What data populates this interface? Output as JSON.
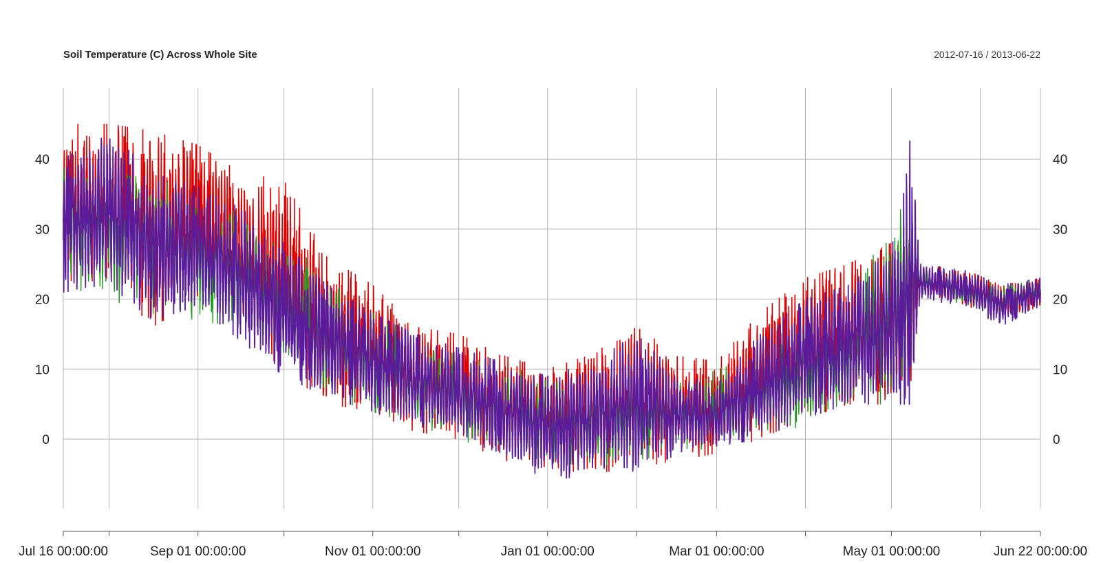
{
  "chart_data": {
    "type": "line",
    "title": "Soil Temperature (C) Across Whole Site",
    "date_range": "2012-07-16 / 2013-06-22",
    "x_start": "2012-07-16",
    "x_end": "2013-06-22",
    "ylim": [
      -10,
      50
    ],
    "y_ticks": [
      0,
      10,
      20,
      30,
      40
    ],
    "grid": true,
    "colors": {
      "grid": "#b3b3b3",
      "axis": "#555555",
      "red_series": "#e00000",
      "green_series": "#1f9a1f",
      "purple_series": "#5a1c9c"
    },
    "x_ticks": [
      {
        "date": "2012-07-16",
        "label": "Jul 16 00:00:00"
      },
      {
        "date": "2012-08-01"
      },
      {
        "date": "2012-09-01",
        "label": "Sep 01 00:00:00"
      },
      {
        "date": "2012-10-01"
      },
      {
        "date": "2012-11-01",
        "label": "Nov 01 00:00:00"
      },
      {
        "date": "2012-12-01"
      },
      {
        "date": "2013-01-01",
        "label": "Jan 01 00:00:00"
      },
      {
        "date": "2013-02-01"
      },
      {
        "date": "2013-03-01",
        "label": "Mar 01 00:00:00"
      },
      {
        "date": "2013-04-01"
      },
      {
        "date": "2013-05-01",
        "label": "May 01 00:00:00"
      },
      {
        "date": "2013-06-01"
      },
      {
        "date": "2013-06-22",
        "label": "Jun 22 00:00:00"
      }
    ],
    "series_bands": [
      {
        "color": "red",
        "points": [
          {
            "x": "2012-07-16",
            "min": 22,
            "max": 45
          },
          {
            "x": "2012-08-01",
            "min": 23,
            "max": 45
          },
          {
            "x": "2012-08-16",
            "min": 16,
            "max": 44
          },
          {
            "x": "2012-09-01",
            "min": 20,
            "max": 42
          },
          {
            "x": "2012-09-16",
            "min": 15,
            "max": 38
          },
          {
            "x": "2012-10-01",
            "min": 10,
            "max": 37
          },
          {
            "x": "2012-10-16",
            "min": 5,
            "max": 26
          },
          {
            "x": "2012-11-01",
            "min": 4,
            "max": 22
          },
          {
            "x": "2012-11-16",
            "min": 1,
            "max": 16
          },
          {
            "x": "2012-12-01",
            "min": 0,
            "max": 15
          },
          {
            "x": "2012-12-16",
            "min": -3,
            "max": 12
          },
          {
            "x": "2013-01-01",
            "min": -4,
            "max": 10
          },
          {
            "x": "2013-01-16",
            "min": -5,
            "max": 12
          },
          {
            "x": "2013-02-01",
            "min": -4,
            "max": 16
          },
          {
            "x": "2013-02-16",
            "min": -3,
            "max": 12
          },
          {
            "x": "2013-03-01",
            "min": -2,
            "max": 11
          },
          {
            "x": "2013-03-16",
            "min": 0,
            "max": 18
          },
          {
            "x": "2013-04-01",
            "min": 3,
            "max": 23
          },
          {
            "x": "2013-04-16",
            "min": 5,
            "max": 25
          },
          {
            "x": "2013-05-01",
            "min": 5,
            "max": 28
          },
          {
            "x": "2013-05-08",
            "min": 7,
            "max": 32
          },
          {
            "x": "2013-05-11",
            "min": 20,
            "max": 25
          },
          {
            "x": "2013-05-28",
            "min": 19,
            "max": 24
          },
          {
            "x": "2013-06-08",
            "min": 17,
            "max": 22
          },
          {
            "x": "2013-06-22",
            "min": 19,
            "max": 23
          }
        ]
      },
      {
        "color": "green",
        "points": [
          {
            "x": "2012-07-16",
            "min": 22,
            "max": 40
          },
          {
            "x": "2012-08-16",
            "min": 18,
            "max": 39
          },
          {
            "x": "2012-09-16",
            "min": 16,
            "max": 32
          },
          {
            "x": "2012-10-16",
            "min": 6,
            "max": 24
          },
          {
            "x": "2012-11-16",
            "min": 2,
            "max": 14
          },
          {
            "x": "2012-12-16",
            "min": -2,
            "max": 10
          },
          {
            "x": "2013-01-16",
            "min": -4,
            "max": 9
          },
          {
            "x": "2013-02-16",
            "min": -2,
            "max": 8
          },
          {
            "x": "2013-03-16",
            "min": 0,
            "max": 12
          },
          {
            "x": "2013-04-16",
            "min": 4,
            "max": 18
          },
          {
            "x": "2013-05-08",
            "min": 6,
            "max": 39
          },
          {
            "x": "2013-05-11",
            "min": 21,
            "max": 25
          },
          {
            "x": "2013-06-08",
            "min": 17,
            "max": 22
          },
          {
            "x": "2013-06-22",
            "min": 20,
            "max": 23
          }
        ]
      },
      {
        "color": "purple",
        "points": [
          {
            "x": "2012-07-16",
            "min": 21,
            "max": 40
          },
          {
            "x": "2012-08-01",
            "min": 22,
            "max": 44
          },
          {
            "x": "2012-08-16",
            "min": 17,
            "max": 38
          },
          {
            "x": "2012-09-01",
            "min": 19,
            "max": 36
          },
          {
            "x": "2012-09-16",
            "min": 14,
            "max": 33
          },
          {
            "x": "2012-10-01",
            "min": 9,
            "max": 28
          },
          {
            "x": "2012-10-16",
            "min": 6,
            "max": 22
          },
          {
            "x": "2012-11-01",
            "min": 4,
            "max": 18
          },
          {
            "x": "2012-11-16",
            "min": 2,
            "max": 15
          },
          {
            "x": "2012-12-01",
            "min": 0,
            "max": 13
          },
          {
            "x": "2012-12-16",
            "min": -2,
            "max": 11
          },
          {
            "x": "2013-01-01",
            "min": -6,
            "max": 9
          },
          {
            "x": "2013-01-16",
            "min": -5,
            "max": 11
          },
          {
            "x": "2013-02-01",
            "min": -5,
            "max": 15
          },
          {
            "x": "2013-02-16",
            "min": -2,
            "max": 9
          },
          {
            "x": "2013-03-01",
            "min": -1,
            "max": 8
          },
          {
            "x": "2013-03-16",
            "min": 0,
            "max": 15
          },
          {
            "x": "2013-04-01",
            "min": 3,
            "max": 20
          },
          {
            "x": "2013-04-16",
            "min": 5,
            "max": 22
          },
          {
            "x": "2013-05-01",
            "min": 5,
            "max": 27
          },
          {
            "x": "2013-05-08",
            "min": 5,
            "max": 44
          },
          {
            "x": "2013-05-11",
            "min": 20,
            "max": 25
          },
          {
            "x": "2013-05-28",
            "min": 19,
            "max": 24
          },
          {
            "x": "2013-06-08",
            "min": 16,
            "max": 22
          },
          {
            "x": "2013-06-22",
            "min": 19,
            "max": 23
          }
        ]
      }
    ]
  }
}
